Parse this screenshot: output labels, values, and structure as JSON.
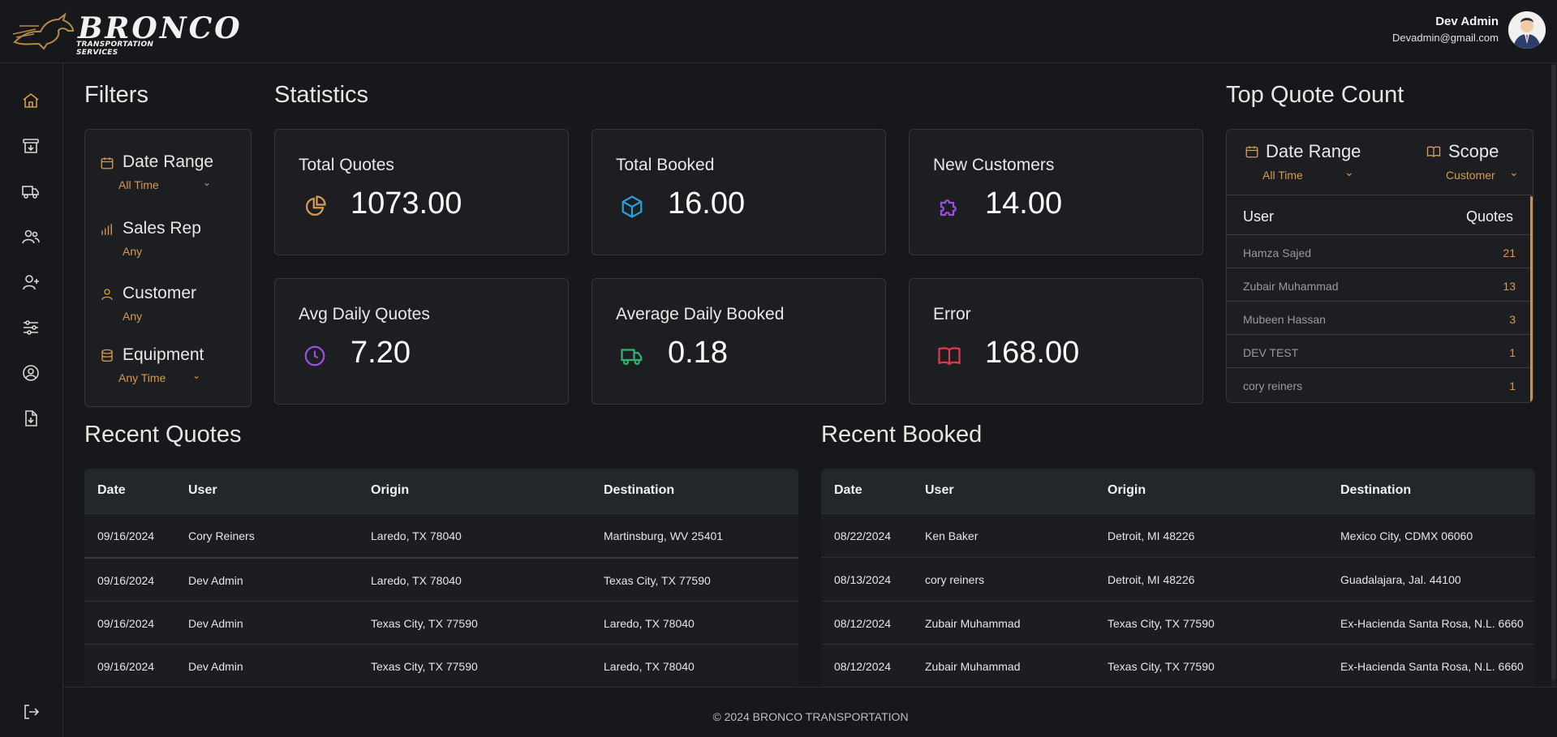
{
  "brand": {
    "title": "BRONCO",
    "subtitle": "TRANSPORTATION SERVICES"
  },
  "user": {
    "name": "Dev Admin",
    "email": "Devadmin@gmail.com"
  },
  "sidebar": {
    "icons": [
      "home-icon",
      "archive-icon",
      "truck-icon",
      "users-icon",
      "user-plus-icon",
      "sliders-icon",
      "user-circle-icon",
      "file-download-icon"
    ],
    "logout_icon": "logout-icon"
  },
  "filters": {
    "title": "Filters",
    "items": [
      {
        "label": "Date Range",
        "value": "All Time",
        "icon": "calendar-icon"
      },
      {
        "label": "Sales Rep",
        "value": "Any",
        "icon": "bar-chart-icon"
      },
      {
        "label": "Customer",
        "value": "Any",
        "icon": "user-icon"
      },
      {
        "label": "Equipment",
        "value": "Any Time",
        "icon": "database-icon"
      }
    ]
  },
  "statistics": {
    "title": "Statistics",
    "cards": [
      {
        "label": "Total Quotes",
        "value": "1073.00",
        "icon": "pie-chart-icon",
        "color": "#d89a50"
      },
      {
        "label": "Total Booked",
        "value": "16.00",
        "icon": "cube-icon",
        "color": "#2a9fd6"
      },
      {
        "label": "New Customers",
        "value": "14.00",
        "icon": "puzzle-icon",
        "color": "#9b4fe0"
      },
      {
        "label": "Avg Daily Quotes",
        "value": "7.20",
        "icon": "clock-icon",
        "color": "#9b4fe0"
      },
      {
        "label": "Average Daily Booked",
        "value": "0.18",
        "icon": "truck-icon",
        "color": "#2fb36b"
      },
      {
        "label": "Error",
        "value": "168.00",
        "icon": "book-open-icon",
        "color": "#e0394f"
      }
    ]
  },
  "top_quote": {
    "title": "Top Quote Count",
    "date_label": "Date Range",
    "date_value": "All Time",
    "scope_label": "Scope",
    "scope_value": "Customer",
    "col_user": "User",
    "col_quotes": "Quotes",
    "rows": [
      {
        "user": "Hamza Sajed",
        "quotes": "21"
      },
      {
        "user": "Zubair Muhammad",
        "quotes": "13"
      },
      {
        "user": "Mubeen Hassan",
        "quotes": "3"
      },
      {
        "user": "DEV TEST",
        "quotes": "1"
      },
      {
        "user": "cory reiners",
        "quotes": "1"
      }
    ]
  },
  "recent_quotes": {
    "title": "Recent Quotes",
    "columns": [
      "Date",
      "User",
      "Origin",
      "Destination"
    ],
    "rows": [
      [
        "09/16/2024",
        "Cory Reiners",
        "Laredo, TX 78040",
        "Martinsburg, WV 25401"
      ],
      [
        "09/16/2024",
        "Dev Admin",
        "Laredo, TX 78040",
        "Texas City, TX 77590"
      ],
      [
        "09/16/2024",
        "Dev Admin",
        "Texas City, TX 77590",
        "Laredo, TX 78040"
      ],
      [
        "09/16/2024",
        "Dev Admin",
        "Texas City, TX 77590",
        "Laredo, TX 78040"
      ]
    ]
  },
  "recent_booked": {
    "title": "Recent Booked",
    "columns": [
      "Date",
      "User",
      "Origin",
      "Destination"
    ],
    "rows": [
      [
        "08/22/2024",
        "Ken Baker",
        "Detroit, MI 48226",
        "Mexico City, CDMX 06060"
      ],
      [
        "08/13/2024",
        "cory reiners",
        "Detroit, MI 48226",
        "Guadalajara, Jal. 44100"
      ],
      [
        "08/12/2024",
        "Zubair Muhammad",
        "Texas City, TX 77590",
        "Ex-Hacienda Santa Rosa, N.L. 6660"
      ],
      [
        "08/12/2024",
        "Zubair Muhammad",
        "Texas City, TX 77590",
        "Ex-Hacienda Santa Rosa, N.L. 6660"
      ]
    ]
  },
  "footer": {
    "text": "© 2024 BRONCO TRANSPORTATION"
  }
}
